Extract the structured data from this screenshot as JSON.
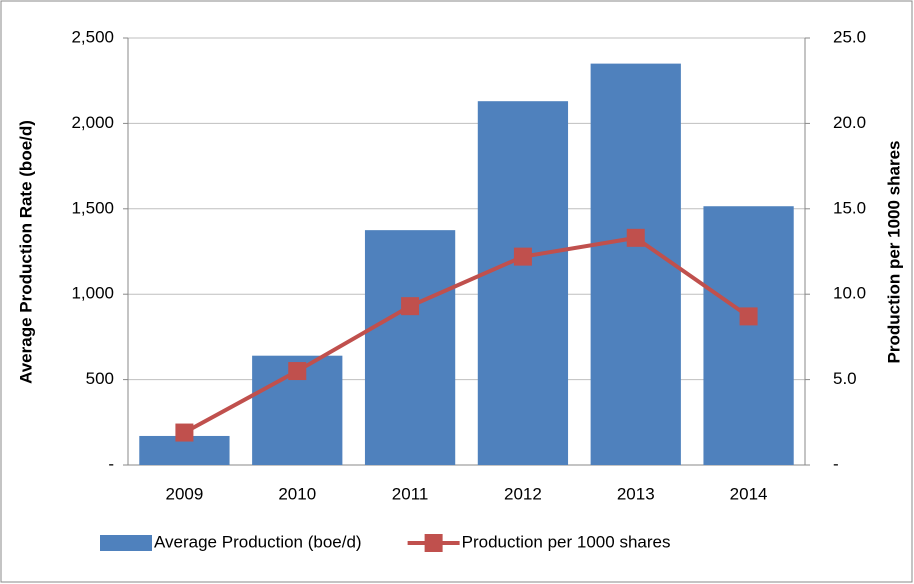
{
  "chart_data": {
    "type": "bar_line",
    "categories": [
      "2009",
      "2010",
      "2011",
      "2012",
      "2013",
      "2014"
    ],
    "ylabel": "Average Production Rate (boe/d)",
    "y2label": "Production per 1000 shares",
    "ylim": [
      0,
      2500
    ],
    "yticks": [
      {
        "value": 0,
        "label": "-"
      },
      {
        "value": 500,
        "label": "500"
      },
      {
        "value": 1000,
        "label": "1,000"
      },
      {
        "value": 1500,
        "label": "1,500"
      },
      {
        "value": 2000,
        "label": "2,000"
      },
      {
        "value": 2500,
        "label": "2,500"
      }
    ],
    "y2lim": [
      0,
      25
    ],
    "y2ticks": [
      {
        "value": 0,
        "label": "-"
      },
      {
        "value": 5,
        "label": "5.0"
      },
      {
        "value": 10,
        "label": "10.0"
      },
      {
        "value": 15,
        "label": "15.0"
      },
      {
        "value": 20,
        "label": "20.0"
      },
      {
        "value": 25,
        "label": "25.0"
      }
    ],
    "grid": true,
    "legend": "bottom",
    "series": [
      {
        "name": "Average Production (boe/d)",
        "type": "bar",
        "color": "#4f81bd",
        "values": [
          170,
          640,
          1375,
          2130,
          2350,
          1515
        ]
      },
      {
        "name": "Production per 1000 shares",
        "type": "line",
        "axis": "y2",
        "color": "#c0504d",
        "values": [
          1.9,
          5.5,
          9.3,
          12.2,
          13.3,
          8.7
        ]
      }
    ]
  }
}
